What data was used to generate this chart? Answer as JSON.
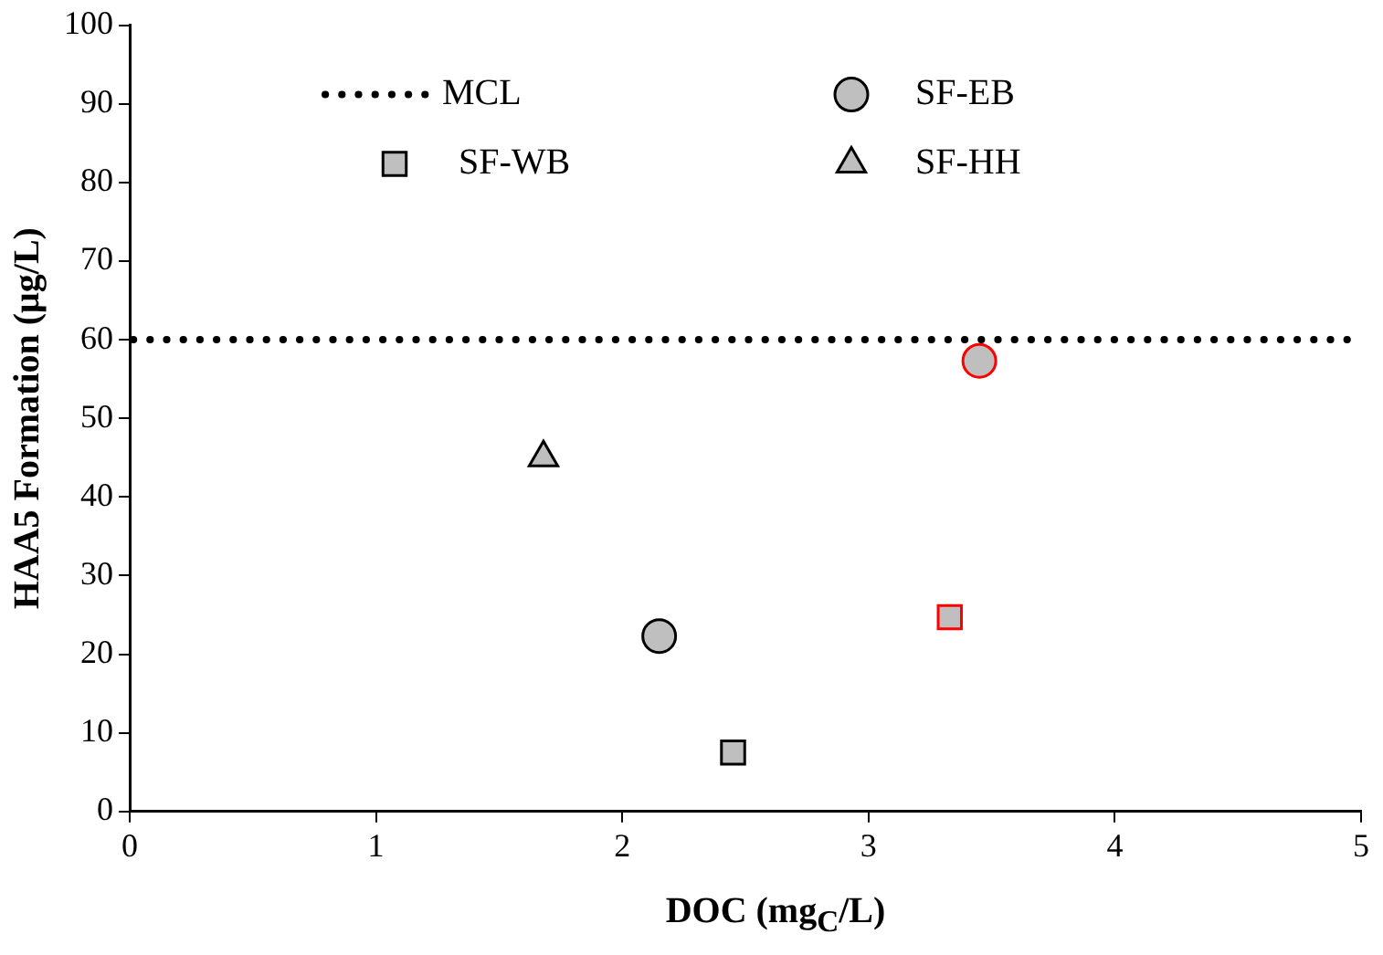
{
  "chart_data": {
    "type": "scatter",
    "xlabel": "DOC (mg$_{C}$/L)",
    "ylabel": "HAA5 Formation (μg/L)",
    "xlim": [
      0,
      5
    ],
    "xticks": [
      0,
      1,
      2,
      3,
      4,
      5
    ],
    "ylim": [
      0,
      100
    ],
    "yticks": [
      0,
      10,
      20,
      30,
      40,
      50,
      60,
      70,
      80,
      90,
      100
    ],
    "grid": false,
    "legend": "top",
    "ref_lines": [
      {
        "axis": "y",
        "value": 60,
        "label": "MCL",
        "color": "#000000",
        "line_style": "dotted"
      }
    ],
    "series": [
      {
        "name": "SF-EB",
        "marker": "circle",
        "color": "#bfbfbf",
        "colors": [
          "#000000",
          "#ff0000"
        ],
        "x": [
          2.15,
          3.45
        ],
        "values": [
          22.3,
          57.3
        ]
      },
      {
        "name": "SF-WB",
        "marker": "square",
        "color": "#bfbfbf",
        "colors": [
          "#000000",
          "#ff0000"
        ],
        "x": [
          2.45,
          3.33
        ],
        "values": [
          7.5,
          24.7
        ]
      },
      {
        "name": "SF-HH",
        "marker": "triangle",
        "color": "#bfbfbf",
        "colors": [
          "#000000"
        ],
        "x": [
          1.68
        ],
        "values": [
          45
        ]
      }
    ]
  }
}
